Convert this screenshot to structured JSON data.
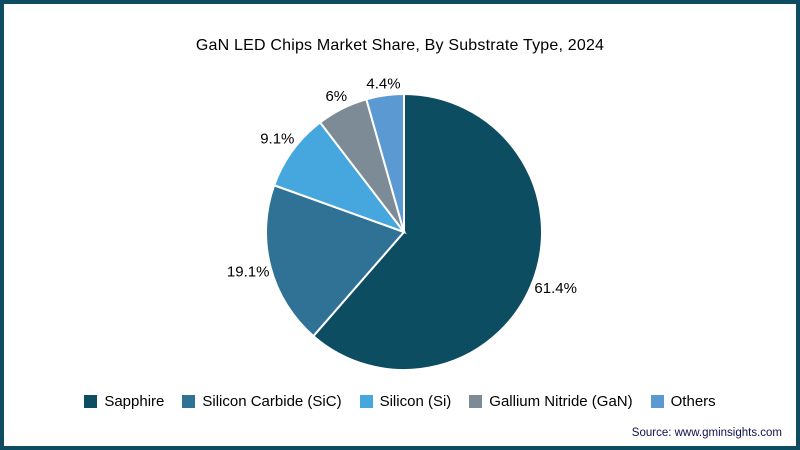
{
  "title": "GaN LED Chips Market Share, By Substrate Type, 2024",
  "source": "Source: www.gminsights.com",
  "frame": {
    "border_color": "#0d4d61",
    "background": "#ffffff"
  },
  "chart_data": {
    "type": "pie",
    "title": "GaN LED Chips Market Share, By Substrate Type, 2024",
    "start_angle_deg": 0,
    "direction": "clockwise",
    "legend_position": "bottom",
    "slices": [
      {
        "label": "Sapphire",
        "value": 61.4,
        "display": "61.4%",
        "color": "#0d4d61"
      },
      {
        "label": "Silicon Carbide (SiC)",
        "value": 19.1,
        "display": "19.1%",
        "color": "#2f7295"
      },
      {
        "label": "Silicon (Si)",
        "value": 9.1,
        "display": "9.1%",
        "color": "#45a7dd"
      },
      {
        "label": "Gallium Nitride (GaN)",
        "value": 6,
        "display": "6%",
        "color": "#7d8b96"
      },
      {
        "label": "Others",
        "value": 4.4,
        "display": "4.4%",
        "color": "#5b99d3"
      }
    ]
  }
}
